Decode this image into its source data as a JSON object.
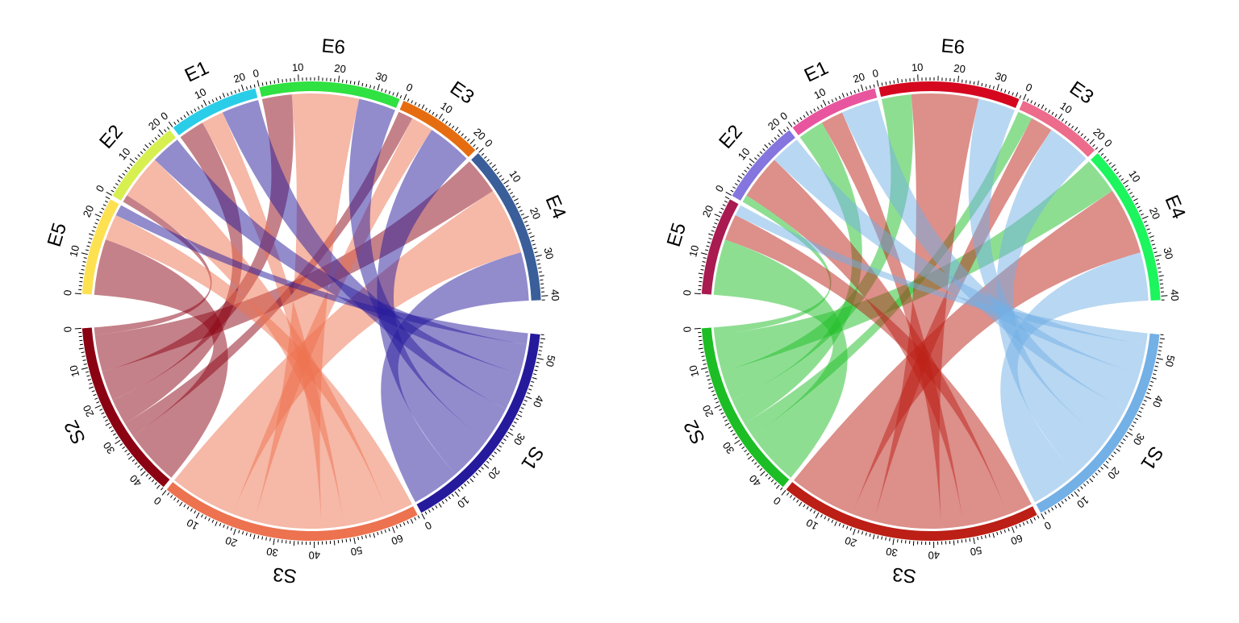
{
  "chart_data": [
    {
      "type": "chord",
      "sectors": [
        {
          "name": "E5",
          "size": 25,
          "color": "#FDE150"
        },
        {
          "name": "E2",
          "size": 22,
          "color": "#D8EF50"
        },
        {
          "name": "E1",
          "size": 23,
          "color": "#2ACDE8"
        },
        {
          "name": "E6",
          "size": 36,
          "color": "#2FE141"
        },
        {
          "name": "E3",
          "size": 22,
          "color": "#E56D10"
        },
        {
          "name": "E4",
          "size": 41,
          "color": "#3A5E99"
        },
        {
          "name": "S1",
          "size": 56,
          "color": "#261A9C"
        },
        {
          "name": "S3",
          "size": 67,
          "color": "#ED7250"
        },
        {
          "name": "S2",
          "size": 46,
          "color": "#8B0313"
        }
      ],
      "links": [
        {
          "source": "S2",
          "target": "E5",
          "value": 15
        },
        {
          "source": "S2",
          "target": "E3",
          "value": 4
        },
        {
          "source": "S2",
          "target": "E1",
          "value": 7
        },
        {
          "source": "S2",
          "target": "E6",
          "value": 8
        },
        {
          "source": "S2",
          "target": "E4",
          "value": 10
        },
        {
          "source": "S2",
          "target": "E2",
          "value": 2
        },
        {
          "source": "S3",
          "target": "E5",
          "value": 7
        },
        {
          "source": "S3",
          "target": "E2",
          "value": 12
        },
        {
          "source": "S3",
          "target": "E1",
          "value": 6
        },
        {
          "source": "S3",
          "target": "E6",
          "value": 18
        },
        {
          "source": "S3",
          "target": "E3",
          "value": 6
        },
        {
          "source": "S3",
          "target": "E4",
          "value": 18
        },
        {
          "source": "S1",
          "target": "E5",
          "value": 3
        },
        {
          "source": "S1",
          "target": "E2",
          "value": 8
        },
        {
          "source": "S1",
          "target": "E1",
          "value": 10
        },
        {
          "source": "S1",
          "target": "E6",
          "value": 10
        },
        {
          "source": "S1",
          "target": "E3",
          "value": 12
        },
        {
          "source": "S1",
          "target": "E4",
          "value": 13
        }
      ],
      "ribbon_color_by": "S"
    },
    {
      "type": "chord",
      "sectors": [
        {
          "name": "E5",
          "size": 25,
          "color": "#A81A50"
        },
        {
          "name": "E2",
          "size": 22,
          "color": "#8575DE"
        },
        {
          "name": "E1",
          "size": 23,
          "color": "#E8559E"
        },
        {
          "name": "E6",
          "size": 36,
          "color": "#D5071F"
        },
        {
          "name": "E3",
          "size": 22,
          "color": "#ED6B8B"
        },
        {
          "name": "E4",
          "size": 41,
          "color": "#1CF55D"
        },
        {
          "name": "S1",
          "size": 56,
          "color": "#72B0E6"
        },
        {
          "name": "S3",
          "size": 67,
          "color": "#BC1F16"
        },
        {
          "name": "S2",
          "size": 46,
          "color": "#1DBD26"
        }
      ],
      "links": [
        {
          "source": "S2",
          "target": "E5",
          "value": 15
        },
        {
          "source": "S2",
          "target": "E3",
          "value": 4
        },
        {
          "source": "S2",
          "target": "E1",
          "value": 7
        },
        {
          "source": "S2",
          "target": "E6",
          "value": 8
        },
        {
          "source": "S2",
          "target": "E4",
          "value": 10
        },
        {
          "source": "S2",
          "target": "E2",
          "value": 2
        },
        {
          "source": "S3",
          "target": "E5",
          "value": 7
        },
        {
          "source": "S3",
          "target": "E2",
          "value": 12
        },
        {
          "source": "S3",
          "target": "E1",
          "value": 6
        },
        {
          "source": "S3",
          "target": "E6",
          "value": 18
        },
        {
          "source": "S3",
          "target": "E3",
          "value": 6
        },
        {
          "source": "S3",
          "target": "E4",
          "value": 18
        },
        {
          "source": "S1",
          "target": "E5",
          "value": 3
        },
        {
          "source": "S1",
          "target": "E2",
          "value": 8
        },
        {
          "source": "S1",
          "target": "E1",
          "value": 10
        },
        {
          "source": "S1",
          "target": "E6",
          "value": 10
        },
        {
          "source": "S1",
          "target": "E3",
          "value": 12
        },
        {
          "source": "S1",
          "target": "E4",
          "value": 13
        }
      ],
      "ribbon_color_by": "S"
    }
  ]
}
